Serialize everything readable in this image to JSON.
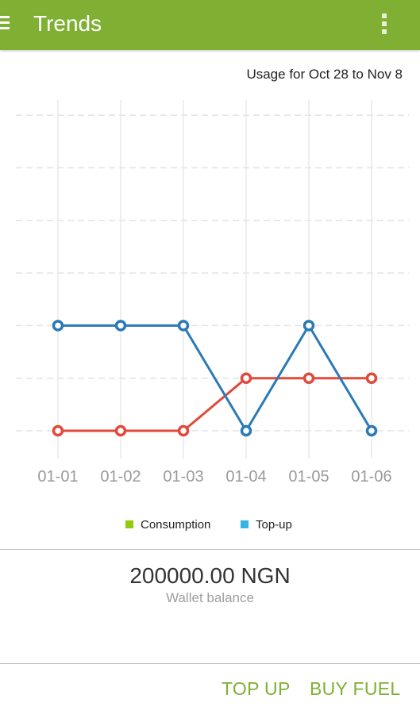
{
  "appbar": {
    "title": "Trends",
    "menu_icon": "hamburger-menu-icon",
    "overflow_icon": "vertical-dots-icon",
    "color": "#7fb034"
  },
  "usage_label": "Usage for Oct 28 to Nov 8",
  "chart_data": {
    "type": "line",
    "categories": [
      "01-01",
      "01-02",
      "01-03",
      "01-04",
      "01-05",
      "01-06"
    ],
    "series": [
      {
        "name": "Top-up",
        "values": [
          3,
          3,
          3,
          1,
          3,
          1
        ],
        "color": "#2a7ab8"
      },
      {
        "name": "Consumption",
        "values": [
          1,
          1,
          1,
          2,
          2,
          2
        ],
        "color": "#e14a3b"
      }
    ],
    "ylim": [
      0,
      7
    ],
    "grid": true,
    "y_tick_labels_shown": false,
    "legend_position": "bottom",
    "legend": [
      {
        "label": "Consumption",
        "color": "#8fcc10"
      },
      {
        "label": "Top-up",
        "color": "#33b5e5"
      }
    ]
  },
  "wallet": {
    "balance": "200000.00 NGN",
    "label": "Wallet balance"
  },
  "actions": {
    "top_up": "TOP UP",
    "buy_fuel": "BUY FUEL"
  }
}
